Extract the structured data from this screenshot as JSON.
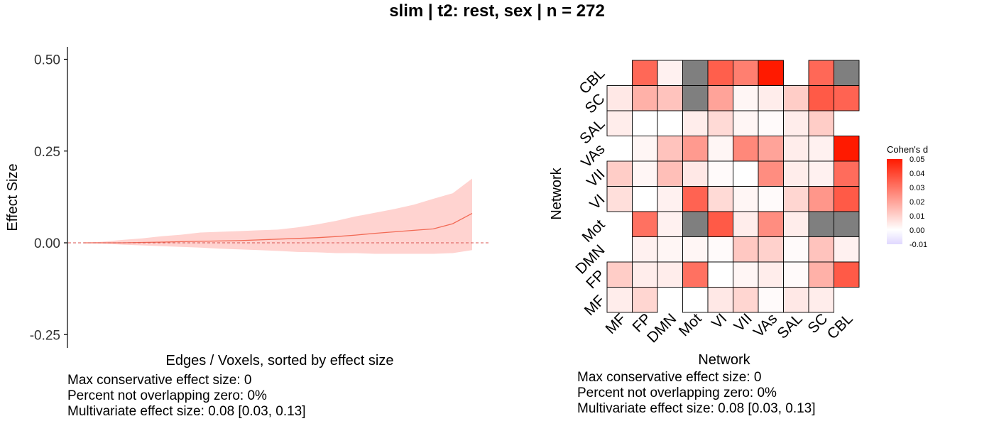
{
  "title": "slim | t2: rest, sex | n = 272",
  "colors": {
    "ci_fill": "#FFD3D0",
    "line": "#F26A55",
    "zero_line": "#D9534F",
    "missing": "#7F7F7F",
    "high": "#FF1A00",
    "low": "#E0D8FF"
  },
  "chart_data": [
    {
      "type": "area",
      "xlabel": "Edges / Voxels, sorted by effect size",
      "ylabel": "Effect Size",
      "yticks": [
        "0.50",
        "0.25",
        "0.00",
        "-0.25"
      ],
      "ylim": [
        -0.29,
        0.54
      ],
      "grid": false,
      "reference_line": {
        "y": 0,
        "style": "dashed"
      },
      "x": [
        0,
        5,
        10,
        15,
        20,
        25,
        30,
        35,
        40,
        45,
        50,
        55,
        60,
        65,
        70,
        75,
        80,
        85,
        90,
        95,
        100
      ],
      "series": [
        {
          "values": [
            0.0,
            0.0,
            0.0,
            0.001,
            0.002,
            0.003,
            0.004,
            0.005,
            0.006,
            0.008,
            0.01,
            0.012,
            0.014,
            0.017,
            0.021,
            0.026,
            0.03,
            0.034,
            0.038,
            0.052,
            0.08
          ]
        }
      ],
      "ci_upper": [
        0.0,
        0.003,
        0.008,
        0.012,
        0.018,
        0.022,
        0.028,
        0.03,
        0.032,
        0.034,
        0.036,
        0.042,
        0.05,
        0.06,
        0.072,
        0.082,
        0.092,
        0.104,
        0.12,
        0.135,
        0.175
      ],
      "ci_lower": [
        0.0,
        -0.002,
        -0.005,
        -0.007,
        -0.009,
        -0.011,
        -0.013,
        -0.016,
        -0.018,
        -0.02,
        -0.022,
        -0.025,
        -0.026,
        -0.028,
        -0.028,
        -0.03,
        -0.03,
        -0.03,
        -0.03,
        -0.028,
        -0.02
      ],
      "notes": [
        "Max conservative effect size: 0",
        "Percent not overlapping zero: 0%",
        "Multivariate effect size: 0.08 [0.03, 0.13]"
      ]
    },
    {
      "type": "heatmap",
      "xlabel": "Network",
      "ylabel": "Network",
      "x_categories": [
        "MF",
        "FP",
        "DMN",
        "Mot",
        "VI",
        "VII",
        "VAs",
        "SAL",
        "SC",
        "CBL"
      ],
      "y_categories_bottom_to_top": [
        "MF",
        "FP",
        "DMN",
        "Mot",
        "VI",
        "VII",
        "VAs",
        "SAL",
        "SC",
        "CBL"
      ],
      "legend_title": "Cohen's d",
      "legend_ticks": [
        "0.05",
        "0.04",
        "0.03",
        "0.02",
        "0.01",
        "0.00",
        "-0.01"
      ],
      "legend_range": [
        -0.01,
        0.05
      ],
      "values_top_to_bottom": [
        [
          null,
          0.033,
          0.003,
          "NA",
          0.035,
          0.028,
          0.052,
          null,
          0.033,
          "NA"
        ],
        [
          0.005,
          0.017,
          0.013,
          "NA",
          0.02,
          0.002,
          0.004,
          0.011,
          0.036,
          0.034
        ],
        [
          0.004,
          0.0,
          0.0,
          0.004,
          0.008,
          0.002,
          0.001,
          0.004,
          0.011,
          null
        ],
        [
          null,
          0.002,
          0.013,
          0.022,
          0.002,
          0.026,
          0.02,
          0.004,
          0.003,
          0.052
        ],
        [
          0.011,
          0.002,
          0.014,
          0.005,
          0.001,
          0.0,
          0.025,
          0.004,
          0.003,
          0.032
        ],
        [
          0.007,
          0.0,
          0.003,
          0.034,
          0.008,
          0.002,
          0.001,
          0.009,
          0.023,
          0.036
        ],
        [
          null,
          0.031,
          0.003,
          "NA",
          0.036,
          0.004,
          0.025,
          0.004,
          "NA",
          "NA"
        ],
        [
          null,
          0.003,
          0.002,
          0.002,
          0.001,
          0.012,
          0.01,
          0.001,
          0.013,
          0.003
        ],
        [
          0.011,
          0.004,
          0.004,
          0.031,
          0.0,
          0.002,
          0.004,
          0.001,
          0.017,
          0.036
        ],
        [
          0.004,
          0.009,
          null,
          0.0,
          0.005,
          0.009,
          0.001,
          0.005,
          0.004,
          null
        ]
      ],
      "notes": [
        "Max conservative effect size: 0",
        "Percent not overlapping zero: 0%",
        "Multivariate effect size: 0.08 [0.03, 0.13]"
      ]
    }
  ]
}
